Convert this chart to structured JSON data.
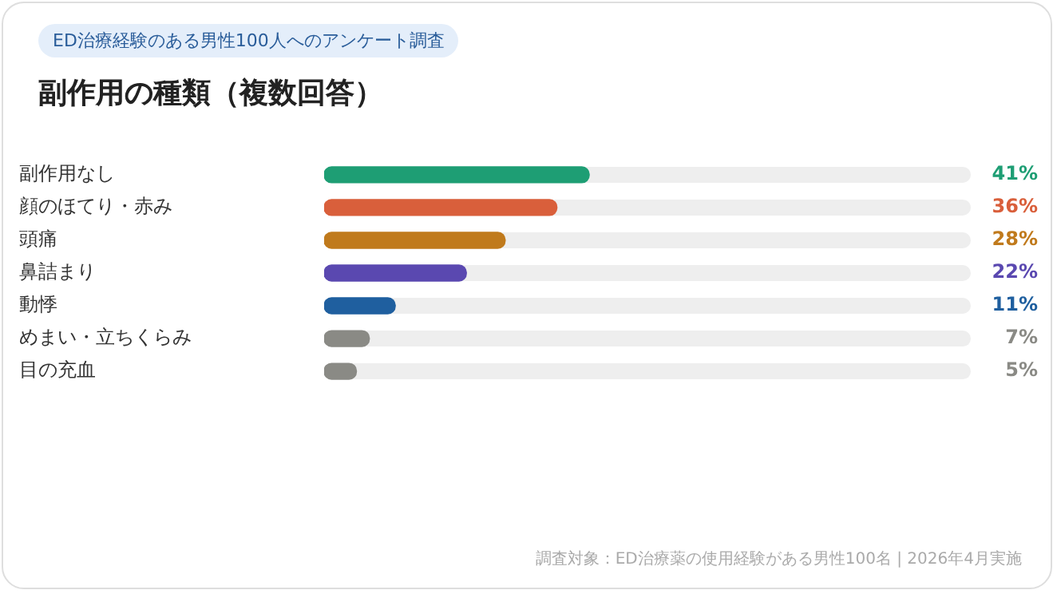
{
  "chart_data": {
    "type": "bar",
    "orientation": "horizontal",
    "subtitle": "ED治療経験のある男性100人へのアンケート調査",
    "title": "副作用の種類（複数回答）",
    "categories": [
      "副作用なし",
      "顔のほてり・赤み",
      "頭痛",
      "鼻詰まり",
      "動悸",
      "めまい・立ちくらみ",
      "目の充血"
    ],
    "values": [
      41,
      36,
      28,
      22,
      11,
      7,
      5
    ],
    "colors": [
      "#1e9e74",
      "#d95f3b",
      "#c07a1c",
      "#5a48b0",
      "#1f5f9f",
      "#8a8a85",
      "#8a8a85"
    ],
    "value_labels": [
      "41%",
      "36%",
      "28%",
      "22%",
      "11%",
      "7%",
      "5%"
    ],
    "xlim": [
      0,
      100
    ],
    "tick_labels": "y",
    "grid": false,
    "legend": false,
    "annotations": [
      "調査対象：ED治療薬の使用経験がある男性100名 | 2026年4月実施"
    ]
  }
}
